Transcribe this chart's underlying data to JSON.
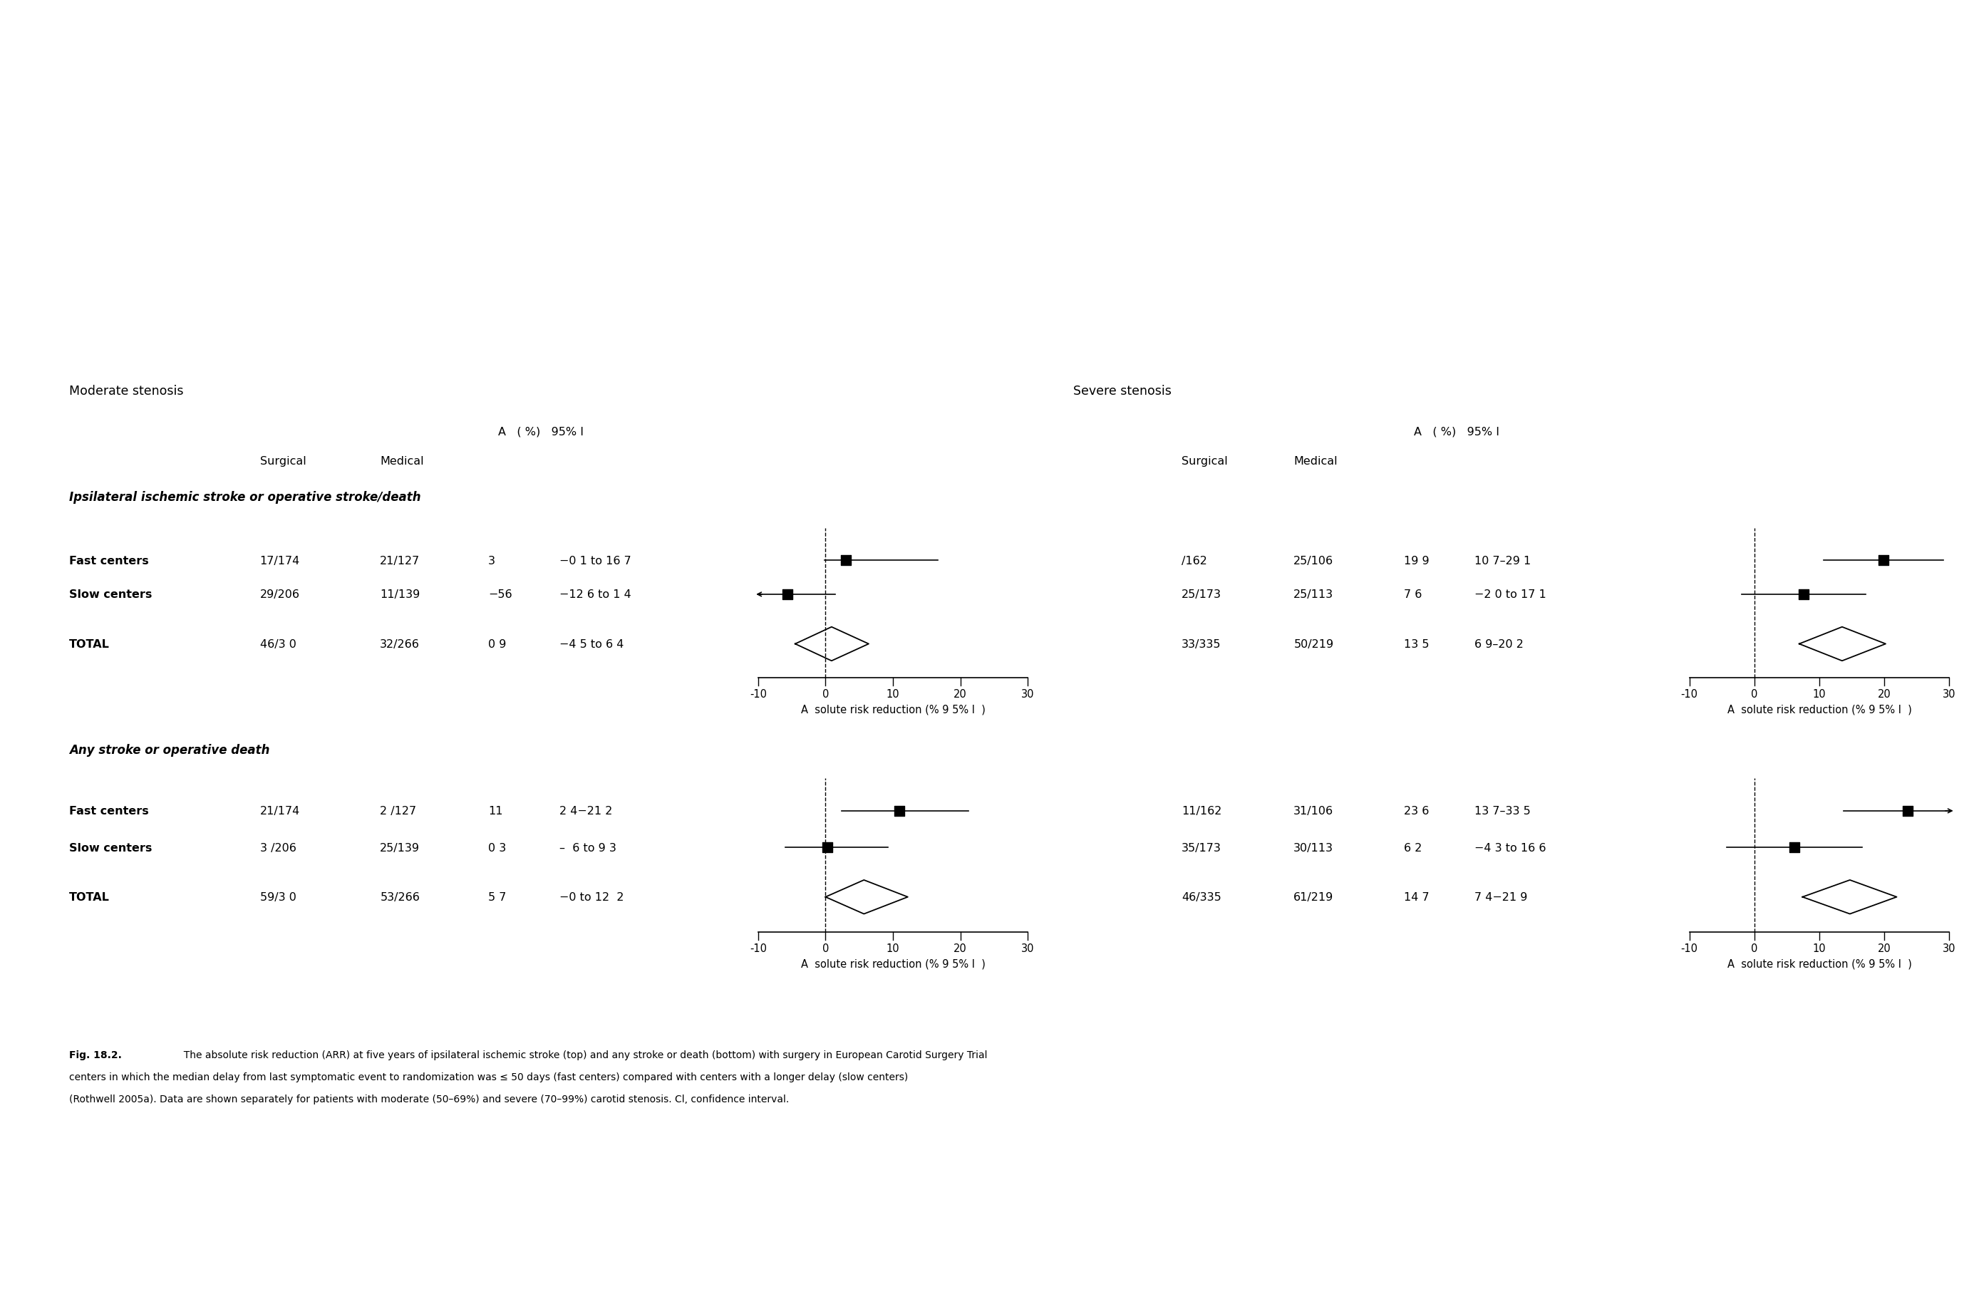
{
  "moderate_header": "Moderate stenosis",
  "severe_header": "Severe stenosis",
  "arr_header": "A   ( %)   95% I",
  "surgical_header": "Surgical",
  "medical_header": "Medical",
  "section1_title": "Ipsilateral ischemic stroke or operative stroke/death",
  "section2_title": "Any stroke or operative death",
  "xlabel": "A  solute risk reduction (% 9 5% I  )",
  "caption_bold": "Fig. 18.2.",
  "caption_rest": "  The absolute risk reduction (ARR) at five years of ipsilateral ischemic stroke (top) and any stroke or death (bottom) with surgery in European Carotid Surgery Trial",
  "caption_line2": "centers in which the median delay from last symptomatic event to randomization was ≤ 50 days (fast centers) compared with centers with a longer delay (slow centers)",
  "caption_line3": "(Rothwell 2005a). Data are shown separately for patients with moderate (50–69%) and severe (70–99%) carotid stenosis. Cl, confidence interval.",
  "panels": {
    "mod_isch": {
      "rows": [
        {
          "label": "Fast centers",
          "surgical": "17/174",
          "medical": "21/127",
          "arr": "3",
          "ci": "−0 1 to 16 7",
          "point": 3.0,
          "lo": -0.1,
          "hi": 16.7,
          "arrow": false,
          "bold": true
        },
        {
          "label": "Slow centers",
          "surgical": "29/206",
          "medical": "11/139",
          "arr": "−56",
          "ci": "−12 6 to 1 4",
          "point": -5.6,
          "lo": -12.6,
          "hi": 1.4,
          "arrow": true,
          "arrow_dir": "left",
          "bold": true
        },
        {
          "label": "TOTAL",
          "surgical": "46/3 0",
          "medical": "32/266",
          "arr": "0 9",
          "ci": "−4 5 to 6 4",
          "point": 0.9,
          "lo": -4.5,
          "hi": 6.4,
          "diamond": true,
          "bold": true
        }
      ]
    },
    "sev_isch": {
      "rows": [
        {
          "surgical": "/162",
          "medical": "25/106",
          "arr": "19 9",
          "ci": "10 7–29 1",
          "point": 19.9,
          "lo": 10.7,
          "hi": 29.1,
          "arrow": false
        },
        {
          "surgical": "25/173",
          "medical": "25/113",
          "arr": "7 6",
          "ci": "−2 0 to 17 1",
          "point": 7.6,
          "lo": -2.0,
          "hi": 17.1,
          "arrow": false
        },
        {
          "surgical": "33/335",
          "medical": "50/219",
          "arr": "13 5",
          "ci": "6 9–20 2",
          "point": 13.5,
          "lo": 6.9,
          "hi": 20.2,
          "diamond": true
        }
      ]
    },
    "mod_any": {
      "rows": [
        {
          "label": "Fast centers",
          "surgical": "21/174",
          "medical": "2 /127",
          "arr": "11",
          "ci": "2 4−21 2",
          "point": 11.0,
          "lo": 2.4,
          "hi": 21.2,
          "arrow": false,
          "bold": true
        },
        {
          "label": "Slow centers",
          "surgical": "3 /206",
          "medical": "25/139",
          "arr": "0 3",
          "ci": "–  6 to 9 3",
          "point": 0.3,
          "lo": -6.0,
          "hi": 9.3,
          "arrow": false,
          "bold": true
        },
        {
          "label": "TOTAL",
          "surgical": "59/3 0",
          "medical": "53/266",
          "arr": "5 7",
          "ci": "−0 to 12  2",
          "point": 5.7,
          "lo": -0.0,
          "hi": 12.2,
          "diamond": true,
          "bold": true
        }
      ]
    },
    "sev_any": {
      "rows": [
        {
          "surgical": "11/162",
          "medical": "31/106",
          "arr": "23 6",
          "ci": "13 7–33 5",
          "point": 23.6,
          "lo": 13.7,
          "hi": 33.5,
          "arrow": true,
          "arrow_dir": "right"
        },
        {
          "surgical": "35/173",
          "medical": "30/113",
          "arr": "6 2",
          "ci": "−4 3 to 16 6",
          "point": 6.2,
          "lo": -4.3,
          "hi": 16.6,
          "arrow": false
        },
        {
          "surgical": "46/335",
          "medical": "61/219",
          "arr": "14 7",
          "ci": "7 4−21 9",
          "point": 14.7,
          "lo": 7.4,
          "hi": 21.9,
          "diamond": true
        }
      ]
    }
  }
}
